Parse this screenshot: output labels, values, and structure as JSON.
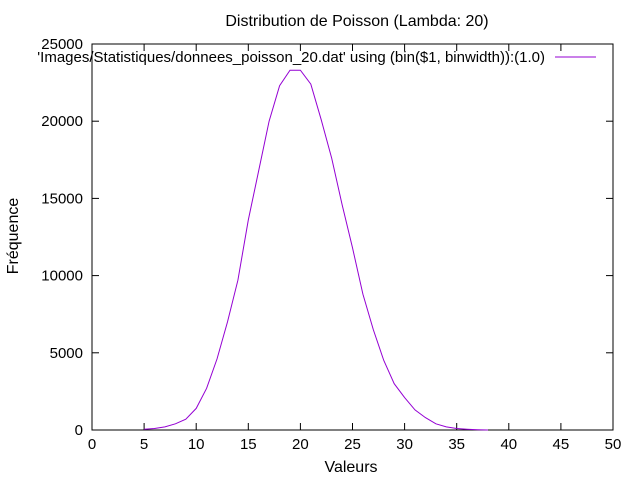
{
  "chart_data": {
    "type": "line",
    "title": "Distribution de Poisson (Lambda: 20)",
    "xlabel": "Valeurs",
    "ylabel": "Fréquence",
    "xlim": [
      0,
      50
    ],
    "ylim": [
      0,
      25000
    ],
    "x_ticks": [
      "0",
      "5",
      "10",
      "15",
      "20",
      "25",
      "30",
      "35",
      "40",
      "45",
      "50"
    ],
    "y_ticks": [
      "0",
      "5000",
      "10000",
      "15000",
      "20000",
      "25000"
    ],
    "grid": false,
    "legend_position": "top-right",
    "series": [
      {
        "name": "'Images/Statistiques/donnees_poisson_20.dat' using (bin($1, binwidth)):(1.0)",
        "color": "#9400d3",
        "x": [
          5,
          6,
          7,
          8,
          9,
          10,
          11,
          12,
          13,
          14,
          15,
          16,
          17,
          18,
          19,
          20,
          21,
          22,
          23,
          24,
          25,
          26,
          27,
          28,
          29,
          30,
          31,
          32,
          33,
          34,
          35,
          36,
          37,
          38
        ],
        "y": [
          50,
          100,
          200,
          400,
          700,
          1400,
          2700,
          4600,
          7000,
          9700,
          13600,
          16800,
          20000,
          22300,
          23300,
          23300,
          22400,
          20100,
          17600,
          14600,
          11800,
          8800,
          6500,
          4500,
          3000,
          2100,
          1300,
          800,
          400,
          200,
          100,
          50,
          20,
          0
        ]
      }
    ]
  }
}
